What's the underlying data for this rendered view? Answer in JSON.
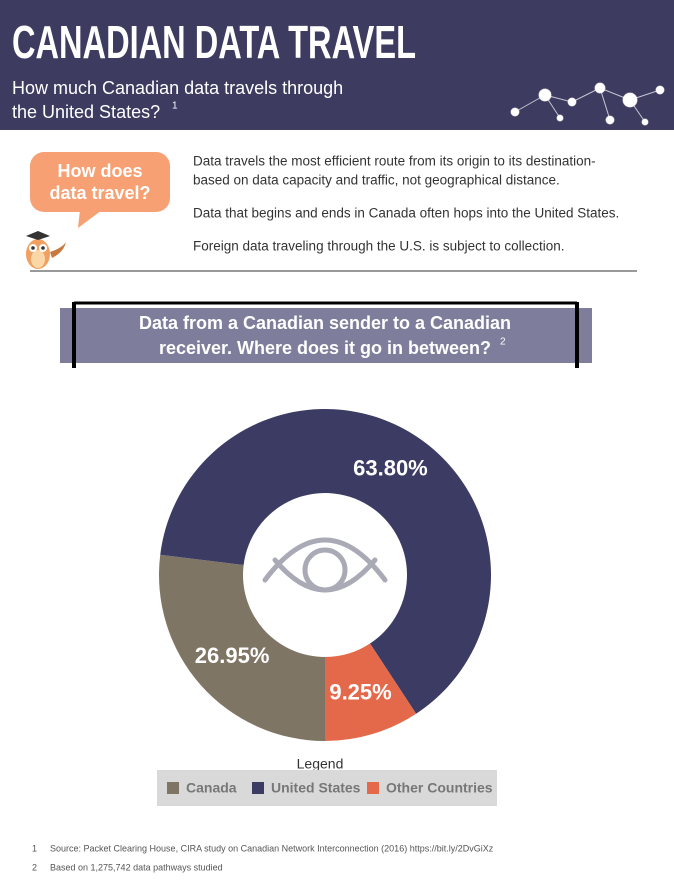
{
  "header": {
    "title": "CANADIAN DATA TRAVEL",
    "subtitle_lines": [
      "How much Canadian data travels through",
      "the United States?"
    ],
    "subtitle_note": "1"
  },
  "intro": {
    "bubble_lines": [
      "How does",
      "data travel?"
    ],
    "paragraphs": [
      [
        "Data travels the most efficient route from its origin to its destination-",
        "based on data capacity and traffic, not geographical distance."
      ],
      [
        "Data that begins and ends in Canada often hops into the United States."
      ],
      [
        "Foreign data traveling through the U.S. is subject to collection."
      ]
    ]
  },
  "chart_data": {
    "type": "donut",
    "title_lines": [
      "Data from a Canadian sender to a Canadian",
      "receiver. Where does it go in between?"
    ],
    "title_note": "2",
    "categories": [
      "Canada",
      "United States",
      "Other Countries"
    ],
    "values": [
      26.95,
      63.8,
      9.25
    ],
    "value_labels": [
      "26.95%",
      "63.80%",
      "9.25%"
    ],
    "colors": [
      "#7f7565",
      "#3b3b63",
      "#e4694b"
    ],
    "legend_title": "Legend"
  },
  "footnotes": [
    {
      "number": "1",
      "text": "Source: Packet Clearing House, CIRA study on Canadian Network Interconnection (2016) https://bit.ly/2DvGiXz"
    },
    {
      "number": "2",
      "text": "Based on 1,275,742 data pathways studied"
    }
  ]
}
